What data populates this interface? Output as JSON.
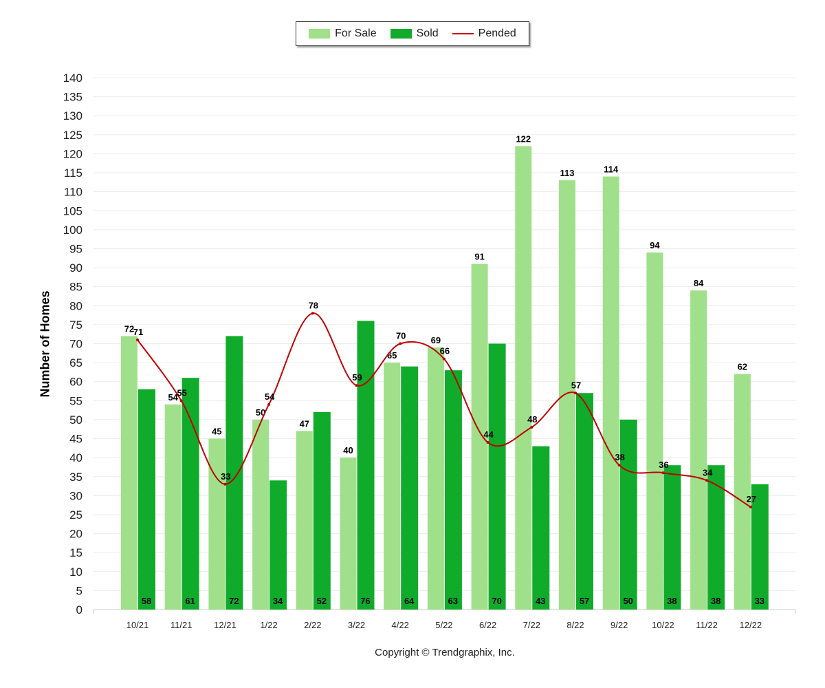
{
  "chart_data": {
    "type": "bar",
    "title": "",
    "xlabel": "",
    "ylabel": "Number of Homes",
    "ylim": [
      0,
      140
    ],
    "ytick_step": 5,
    "grid": true,
    "legend_position": "top-center",
    "categories": [
      "10/21",
      "11/21",
      "12/21",
      "1/22",
      "2/22",
      "3/22",
      "4/22",
      "5/22",
      "6/22",
      "7/22",
      "8/22",
      "9/22",
      "10/22",
      "11/22",
      "12/22"
    ],
    "series": [
      {
        "name": "For Sale",
        "type": "bar",
        "color": "#a0e08a",
        "values": [
          72,
          54,
          45,
          50,
          47,
          40,
          65,
          69,
          91,
          122,
          113,
          114,
          94,
          84,
          62
        ]
      },
      {
        "name": "Sold",
        "type": "bar",
        "color": "#10ab2a",
        "values": [
          58,
          61,
          72,
          34,
          52,
          76,
          64,
          63,
          70,
          43,
          57,
          50,
          38,
          38,
          33
        ]
      },
      {
        "name": "Pended",
        "type": "line",
        "color": "#c00000",
        "values": [
          71,
          55,
          33,
          54,
          78,
          59,
          70,
          66,
          44,
          48,
          57,
          38,
          36,
          34,
          27
        ]
      }
    ]
  },
  "copyright": "Copyright © Trendgraphix, Inc."
}
